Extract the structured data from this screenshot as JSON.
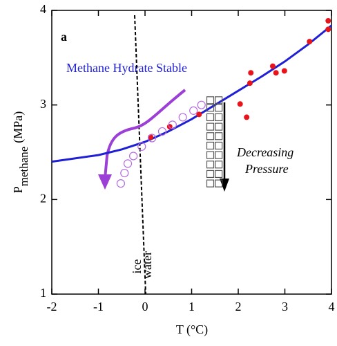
{
  "chart_data": {
    "type": "scatter",
    "panel_label": "a",
    "xlabel": "T (°C)",
    "ylabel": "P",
    "ylabel_sub": "methane",
    "ylabel_unit": "(MPa)",
    "xlim": [
      -2,
      4
    ],
    "ylim": [
      1,
      4
    ],
    "xticks": [
      -2,
      -1,
      0,
      1,
      2,
      3,
      4
    ],
    "yticks": [
      1,
      2,
      3,
      4
    ],
    "annotations": {
      "region": "Methane Hydrate Stable",
      "arrow_line1": "Decreasing",
      "arrow_line2": "Pressure",
      "ice": "ice",
      "water": "water"
    },
    "series": [
      {
        "type": "line",
        "color": "#1f1fd6",
        "x": [
          -2,
          -1,
          -0.5,
          0,
          0.5,
          1,
          1.5,
          2,
          2.5,
          3,
          3.5,
          4
        ],
        "values": [
          2.4,
          2.47,
          2.53,
          2.61,
          2.72,
          2.85,
          3.0,
          3.15,
          3.3,
          3.46,
          3.64,
          3.84
        ]
      },
      {
        "type": "scatter",
        "marker": "dot",
        "color": "#e8141c",
        "x": [
          0.12,
          0.53,
          1.16,
          2.04,
          2.18,
          2.27,
          2.25,
          2.74,
          2.81,
          2.99,
          3.53,
          3.93,
          3.93
        ],
        "values": [
          2.66,
          2.77,
          2.9,
          3.01,
          2.87,
          3.34,
          3.23,
          3.41,
          3.34,
          3.36,
          3.67,
          3.89,
          3.8
        ]
      },
      {
        "type": "scatter",
        "marker": "circle",
        "color": "#b46ae0",
        "x": [
          -0.52,
          -0.44,
          -0.37,
          -0.25,
          -0.07,
          0.15,
          0.37,
          0.59,
          0.81,
          1.04,
          1.21
        ],
        "values": [
          2.17,
          2.28,
          2.38,
          2.46,
          2.56,
          2.65,
          2.72,
          2.79,
          2.87,
          2.94,
          3.0
        ]
      },
      {
        "type": "scatter",
        "marker": "square",
        "color": "#555555",
        "x": [
          1.4,
          1.4,
          1.4,
          1.4,
          1.4,
          1.4,
          1.4,
          1.4,
          1.4,
          1.4,
          1.58,
          1.58,
          1.58,
          1.58,
          1.58,
          1.58,
          1.58,
          1.58,
          1.58,
          1.58
        ],
        "values": [
          2.17,
          2.27,
          2.37,
          2.47,
          2.57,
          2.67,
          2.77,
          2.87,
          2.97,
          3.05,
          2.17,
          2.27,
          2.37,
          2.47,
          2.57,
          2.67,
          2.77,
          2.87,
          2.97,
          3.05
        ]
      }
    ]
  }
}
